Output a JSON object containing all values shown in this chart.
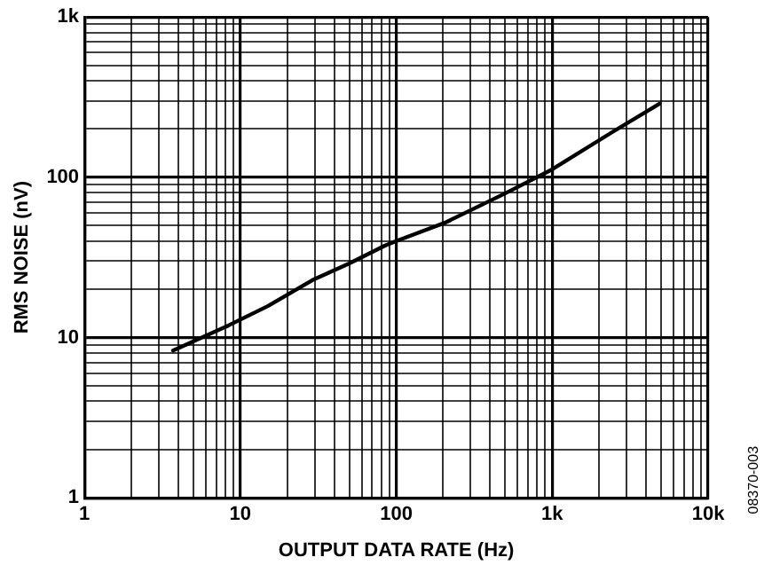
{
  "chart_data": {
    "type": "line",
    "xlabel": "OUTPUT DATA RATE (Hz)",
    "ylabel": "RMS NOISE (nV)",
    "log": "xy",
    "grid": true,
    "legend": false,
    "marker": "none",
    "line_style": "solid",
    "xlim": [
      1,
      10000
    ],
    "ylim": [
      1,
      1000
    ],
    "xticks": [
      {
        "value": 1,
        "label": "1"
      },
      {
        "value": 2,
        "label": null
      },
      {
        "value": 3,
        "label": null
      },
      {
        "value": 4,
        "label": null
      },
      {
        "value": 5,
        "label": null
      },
      {
        "value": 6,
        "label": null
      },
      {
        "value": 7,
        "label": null
      },
      {
        "value": 8,
        "label": null
      },
      {
        "value": 9,
        "label": null
      },
      {
        "value": 10,
        "label": "10"
      },
      {
        "value": 20,
        "label": null
      },
      {
        "value": 30,
        "label": null
      },
      {
        "value": 40,
        "label": null
      },
      {
        "value": 50,
        "label": null
      },
      {
        "value": 60,
        "label": null
      },
      {
        "value": 70,
        "label": null
      },
      {
        "value": 80,
        "label": null
      },
      {
        "value": 90,
        "label": null
      },
      {
        "value": 100,
        "label": "100"
      },
      {
        "value": 200,
        "label": null
      },
      {
        "value": 300,
        "label": null
      },
      {
        "value": 400,
        "label": null
      },
      {
        "value": 500,
        "label": null
      },
      {
        "value": 600,
        "label": null
      },
      {
        "value": 700,
        "label": null
      },
      {
        "value": 800,
        "label": null
      },
      {
        "value": 900,
        "label": null
      },
      {
        "value": 1000,
        "label": "1k"
      },
      {
        "value": 2000,
        "label": null
      },
      {
        "value": 3000,
        "label": null
      },
      {
        "value": 4000,
        "label": null
      },
      {
        "value": 5000,
        "label": null
      },
      {
        "value": 6000,
        "label": null
      },
      {
        "value": 7000,
        "label": null
      },
      {
        "value": 8000,
        "label": null
      },
      {
        "value": 9000,
        "label": null
      },
      {
        "value": 10000,
        "label": "10k"
      }
    ],
    "yticks": [
      {
        "value": 1,
        "label": "1"
      },
      {
        "value": 2,
        "label": null
      },
      {
        "value": 3,
        "label": null
      },
      {
        "value": 4,
        "label": null
      },
      {
        "value": 5,
        "label": null
      },
      {
        "value": 6,
        "label": null
      },
      {
        "value": 7,
        "label": null
      },
      {
        "value": 8,
        "label": null
      },
      {
        "value": 9,
        "label": null
      },
      {
        "value": 10,
        "label": "10"
      },
      {
        "value": 20,
        "label": null
      },
      {
        "value": 30,
        "label": null
      },
      {
        "value": 40,
        "label": null
      },
      {
        "value": 50,
        "label": null
      },
      {
        "value": 60,
        "label": null
      },
      {
        "value": 70,
        "label": null
      },
      {
        "value": 80,
        "label": null
      },
      {
        "value": 90,
        "label": null
      },
      {
        "value": 100,
        "label": "100"
      },
      {
        "value": 200,
        "label": null
      },
      {
        "value": 300,
        "label": null
      },
      {
        "value": 400,
        "label": null
      },
      {
        "value": 500,
        "label": null
      },
      {
        "value": 600,
        "label": null
      },
      {
        "value": 700,
        "label": null
      },
      {
        "value": 800,
        "label": null
      },
      {
        "value": 900,
        "label": null
      },
      {
        "value": 1000,
        "label": "1k"
      }
    ],
    "x": [
      3.7,
      8.4,
      15,
      29,
      50,
      85,
      100,
      205,
      495,
      1000,
      2400,
      4860
    ],
    "series": [
      {
        "color": "#000000",
        "values": [
          8.3,
          11.9,
          15.7,
          22.8,
          29,
          37.5,
          40,
          52,
          79,
          112,
          190,
          287
        ]
      }
    ],
    "annotations": [
      "08370-003"
    ]
  }
}
